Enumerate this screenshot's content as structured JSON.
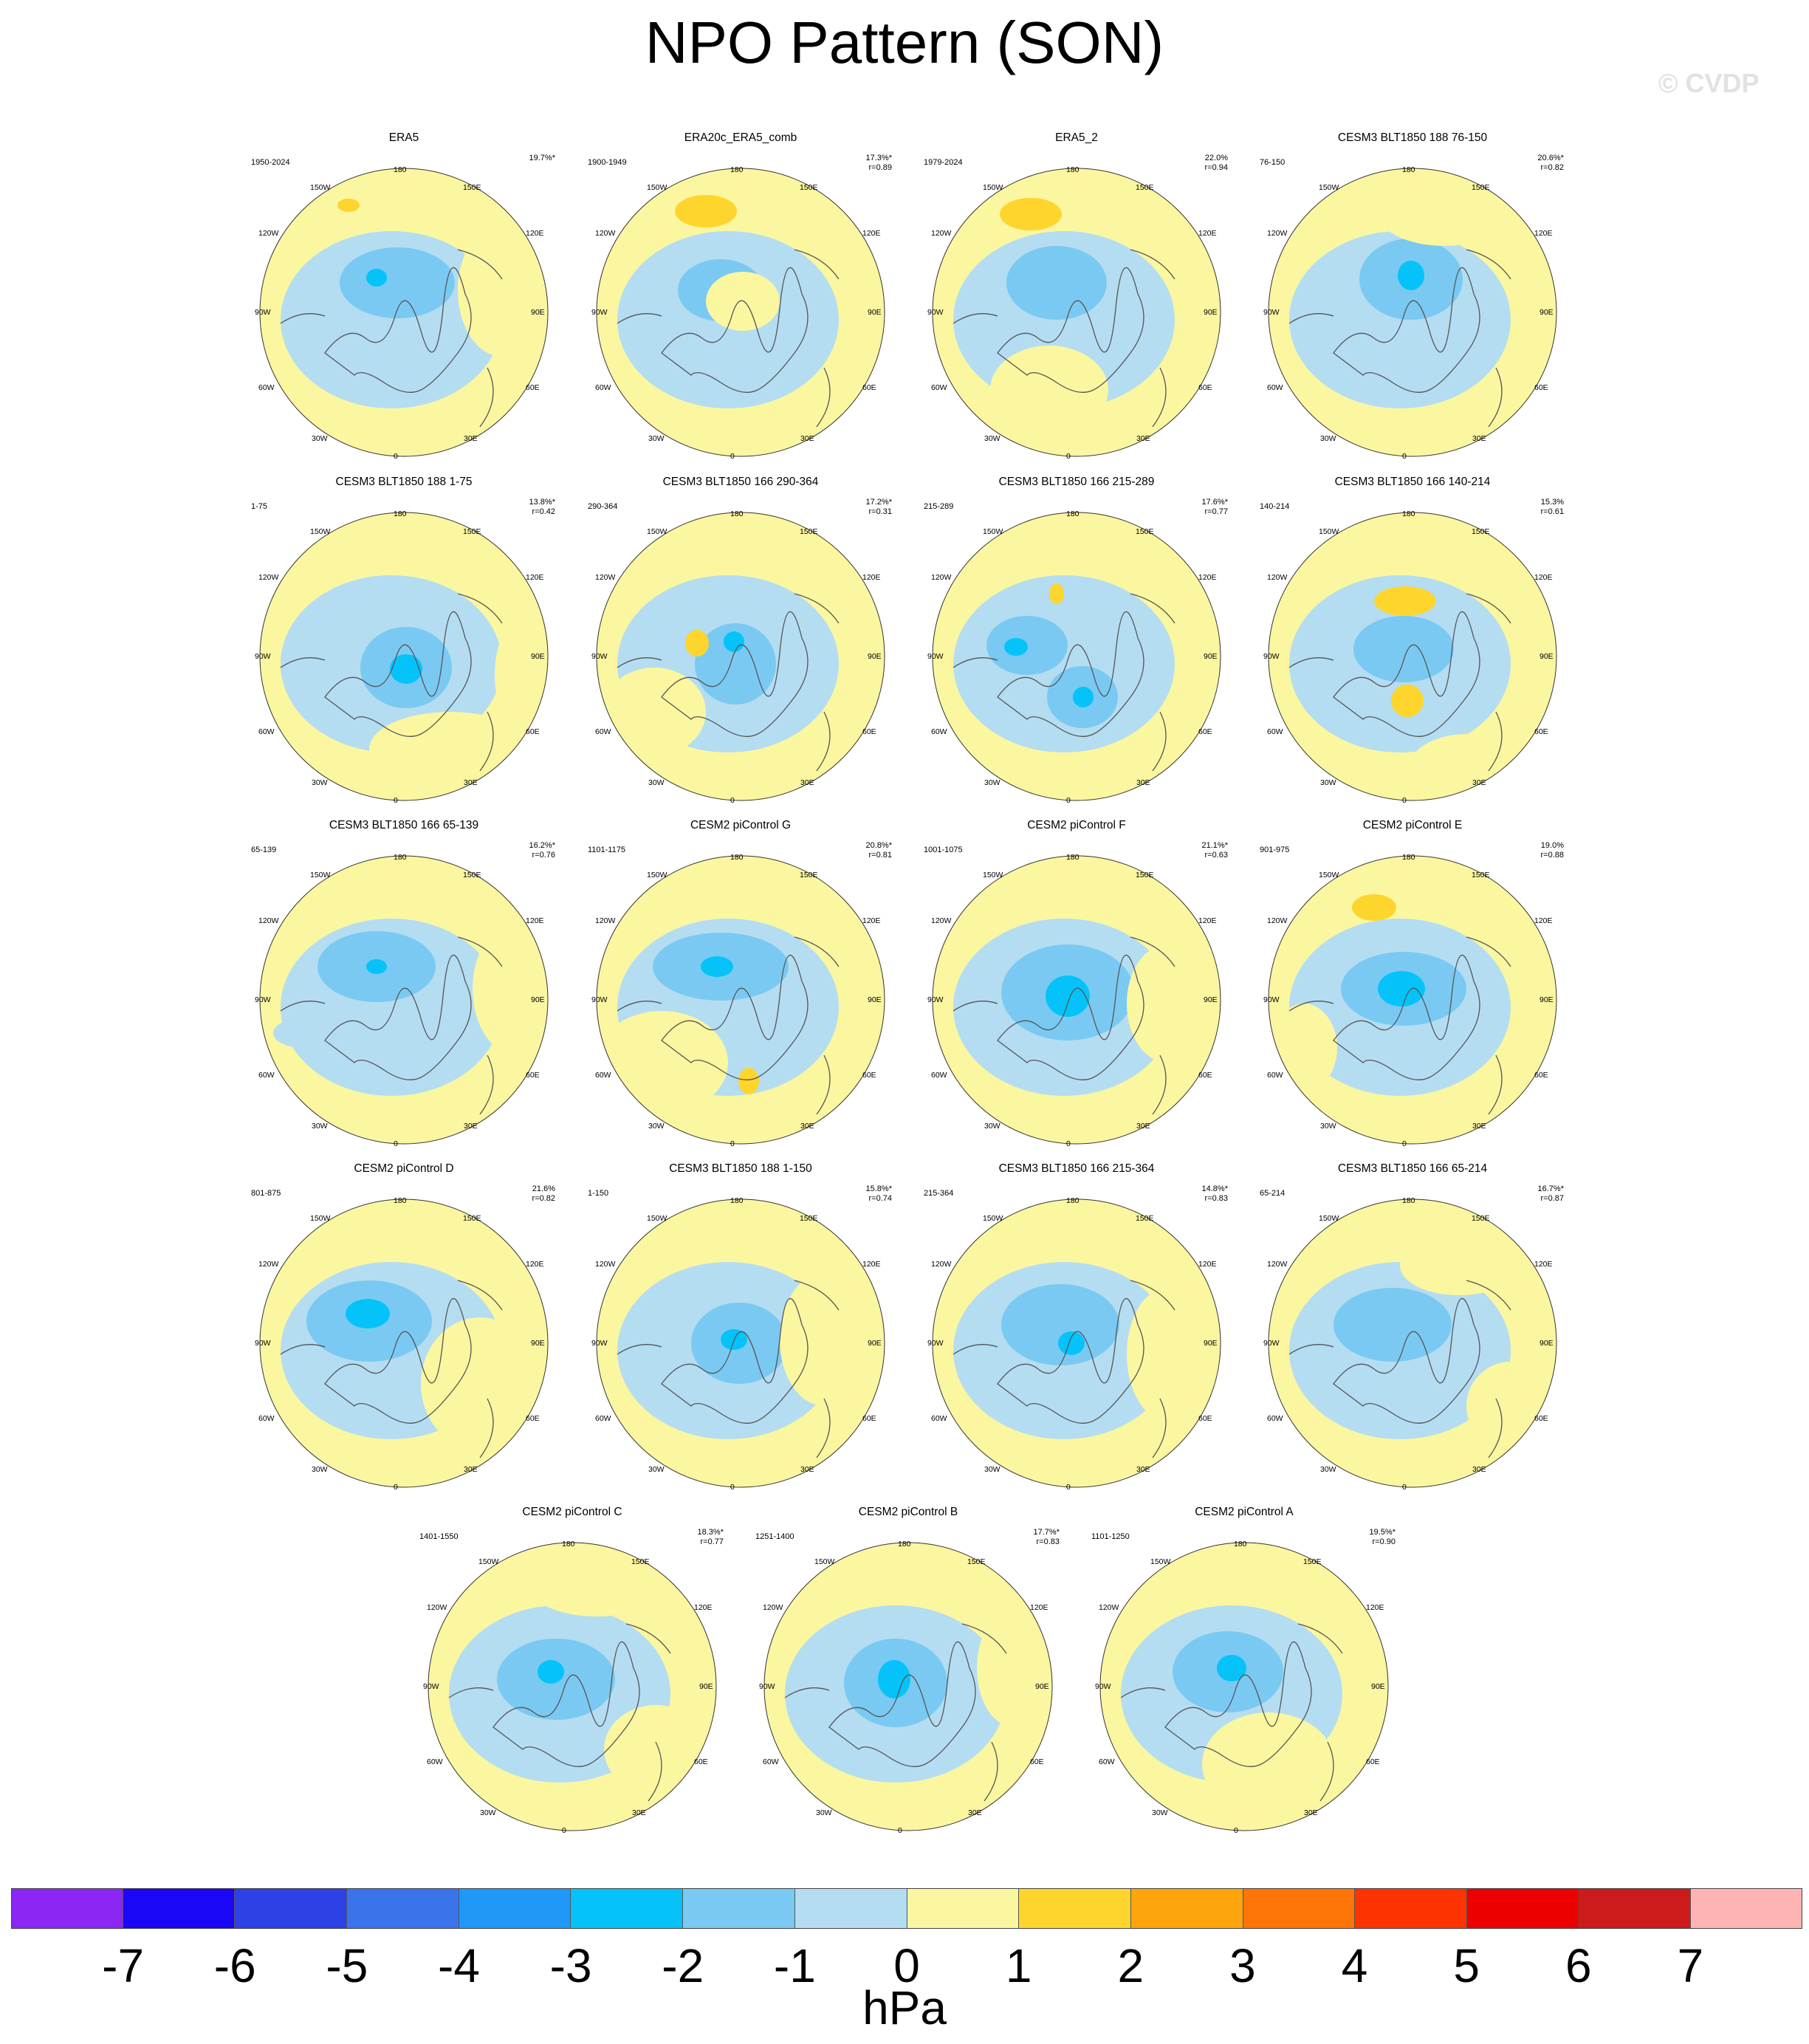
{
  "title": "NPO Pattern (SON)",
  "watermark": "© CVDP",
  "longitude_labels": {
    "top": "180",
    "top_left": "150W",
    "top_right": "150E",
    "upper_left": "120W",
    "upper_right": "120E",
    "left": "90W",
    "right": "90E",
    "lower_left": "60W",
    "lower_right": "60E",
    "bottom_left": "30W",
    "bottom_right": "30E",
    "bottom": "0"
  },
  "panels": [
    {
      "title": "ERA5",
      "period": "1950-2024",
      "pct": "19.7%*",
      "r": ""
    },
    {
      "title": "ERA20c_ERA5_comb",
      "period": "1900-1949",
      "pct": "17.3%*",
      "r": "r=0.89"
    },
    {
      "title": "ERA5_2",
      "period": "1979-2024",
      "pct": "22.0%",
      "r": "r=0.94"
    },
    {
      "title": "CESM3 BLT1850 188 76-150",
      "period": "76-150",
      "pct": "20.6%*",
      "r": "r=0.82"
    },
    {
      "title": "CESM3 BLT1850 188 1-75",
      "period": "1-75",
      "pct": "13.8%*",
      "r": "r=0.42"
    },
    {
      "title": "CESM3 BLT1850 166 290-364",
      "period": "290-364",
      "pct": "17.2%*",
      "r": "r=0.31"
    },
    {
      "title": "CESM3 BLT1850 166 215-289",
      "period": "215-289",
      "pct": "17.6%*",
      "r": "r=0.77"
    },
    {
      "title": "CESM3 BLT1850 166 140-214",
      "period": "140-214",
      "pct": "15.3%",
      "r": "r=0.61"
    },
    {
      "title": "CESM3 BLT1850 166 65-139",
      "period": "65-139",
      "pct": "16.2%*",
      "r": "r=0.76"
    },
    {
      "title": "CESM2 piControl G",
      "period": "1101-1175",
      "pct": "20.8%*",
      "r": "r=0.81"
    },
    {
      "title": "CESM2 piControl F",
      "period": "1001-1075",
      "pct": "21.1%*",
      "r": "r=0.63"
    },
    {
      "title": "CESM2 piControl E",
      "period": "901-975",
      "pct": "19.0%",
      "r": "r=0.88"
    },
    {
      "title": "CESM2 piControl D",
      "period": "801-875",
      "pct": "21.6%",
      "r": "r=0.82"
    },
    {
      "title": "CESM3 BLT1850 188 1-150",
      "period": "1-150",
      "pct": "15.8%*",
      "r": "r=0.74"
    },
    {
      "title": "CESM3 BLT1850 166 215-364",
      "period": "215-364",
      "pct": "14.8%*",
      "r": "r=0.83"
    },
    {
      "title": "CESM3 BLT1850 166 65-214",
      "period": "65-214",
      "pct": "16.7%*",
      "r": "r=0.87"
    },
    {
      "title": "CESM2 piControl C",
      "period": "1401-1550",
      "pct": "18.3%*",
      "r": "r=0.77"
    },
    {
      "title": "CESM2 piControl B",
      "period": "1251-1400",
      "pct": "17.7%*",
      "r": "r=0.83"
    },
    {
      "title": "CESM2 piControl A",
      "period": "1101-1250",
      "pct": "19.5%*",
      "r": "r=0.90"
    }
  ],
  "colorbar": {
    "colors": [
      "#8b26f5",
      "#1a07f5",
      "#2d42e6",
      "#3a74ea",
      "#1f98f8",
      "#05c3f8",
      "#7ac9f2",
      "#b4ddf2",
      "#fbf6a0",
      "#fed52c",
      "#fea50d",
      "#fd7507",
      "#fd3302",
      "#ec0000",
      "#cd1b1b",
      "#ffb4b4"
    ],
    "ticks": [
      "-7",
      "-6",
      "-5",
      "-4",
      "-3",
      "-2",
      "-1",
      "0",
      "1",
      "2",
      "3",
      "4",
      "5",
      "6",
      "7"
    ],
    "units": "hPa"
  }
}
